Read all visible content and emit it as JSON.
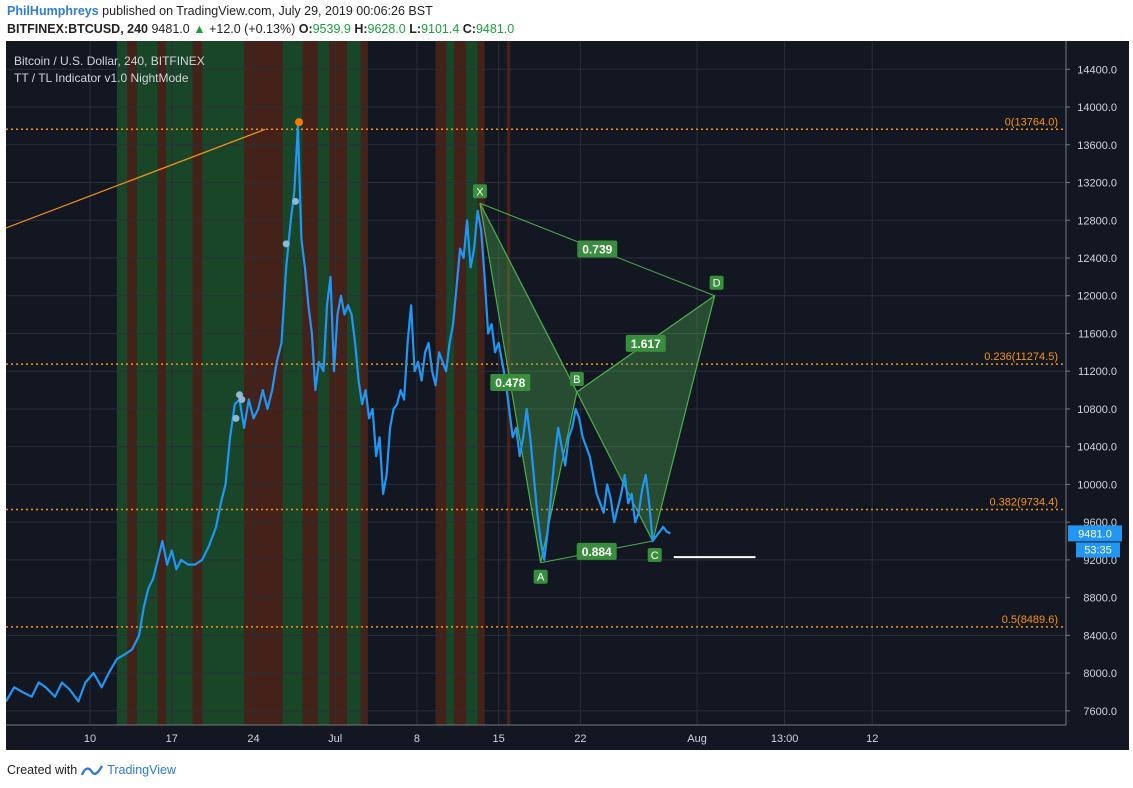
{
  "header": {
    "user": "PhilHumphreys",
    "published_text": "published on TradingView.com, July 29, 2019 00:06:26 BST",
    "symbol": "BITFINEX:BTCUSD, 240",
    "last": "9481.0",
    "change": "+12.0 (+0.13%)",
    "o_label": "O:",
    "o_val": "9539.9",
    "h_label": "H:",
    "h_val": "9628.0",
    "l_label": "L:",
    "l_val": "9101.4",
    "c_label": "C:",
    "c_val": "9481.0"
  },
  "legend": {
    "title": "Bitcoin / U.S. Dollar, 240, BITFINEX",
    "indicator": "TT / TL Indicator v1.0 NightMode"
  },
  "footer": {
    "created_with": "Created with",
    "brand": "TradingView"
  },
  "colors": {
    "background": "#131722",
    "price_line": "#2196f3",
    "fib_line": "#f7931a",
    "pattern_fill": "#4caf50",
    "label_green": "#388e3c",
    "band_green": "#1b4d2a",
    "band_red": "#4d2418",
    "current_price_tag": "#2196f3"
  },
  "price_tag": {
    "price": "9481.0",
    "countdown": "53:35"
  },
  "chart_data": {
    "type": "line",
    "title": "Bitcoin / U.S. Dollar, 240, BITFINEX",
    "ylim": [
      7450,
      14700
    ],
    "y_ticks": [
      7600,
      8000,
      8400,
      8800,
      9200,
      9600,
      10000,
      10400,
      10800,
      11200,
      11600,
      12000,
      12400,
      12800,
      13200,
      13600,
      14000,
      14400
    ],
    "y_tick_labels": [
      "7600.0",
      "8000.0",
      "8400.0",
      "8800.0",
      "9200.0",
      "9600.0",
      "10000.0",
      "10400.0",
      "10800.0",
      "11200.0",
      "11600.0",
      "12000.0",
      "12400.0",
      "12800.0",
      "13200.0",
      "13600.0",
      "14000.0",
      "14400.0"
    ],
    "x_tick_labels": [
      "10",
      "17",
      "24",
      "Jul",
      "8",
      "15",
      "22",
      "Aug",
      "13:00",
      "12"
    ],
    "x_tick_days": [
      10,
      17,
      24,
      31,
      38,
      45,
      52,
      62,
      69.5,
      77
    ],
    "x_range_days": [
      2.8,
      93.6
    ],
    "series": [
      {
        "values": [
          [
            2.8,
            7700
          ],
          [
            3.5,
            7850
          ],
          [
            4.2,
            7800
          ],
          [
            5.0,
            7750
          ],
          [
            5.6,
            7900
          ],
          [
            6.2,
            7850
          ],
          [
            7.0,
            7750
          ],
          [
            7.6,
            7900
          ],
          [
            8.3,
            7820
          ],
          [
            9.0,
            7700
          ],
          [
            9.6,
            7900
          ],
          [
            10.3,
            8000
          ],
          [
            11.0,
            7850
          ],
          [
            11.6,
            8000
          ],
          [
            12.3,
            8150
          ],
          [
            13.0,
            8200
          ],
          [
            13.6,
            8250
          ],
          [
            14.2,
            8400
          ],
          [
            14.6,
            8700
          ],
          [
            15.0,
            8900
          ],
          [
            15.4,
            9000
          ],
          [
            15.8,
            9200
          ],
          [
            16.2,
            9400
          ],
          [
            16.6,
            9150
          ],
          [
            17.0,
            9300
          ],
          [
            17.4,
            9100
          ],
          [
            17.8,
            9200
          ],
          [
            18.4,
            9150
          ],
          [
            19.0,
            9150
          ],
          [
            19.6,
            9200
          ],
          [
            20.2,
            9350
          ],
          [
            20.8,
            9550
          ],
          [
            21.2,
            9800
          ],
          [
            21.6,
            10000
          ],
          [
            22.0,
            10500
          ],
          [
            22.4,
            10850
          ],
          [
            22.8,
            10900
          ],
          [
            23.2,
            10600
          ],
          [
            23.6,
            10900
          ],
          [
            24.0,
            10700
          ],
          [
            24.4,
            10800
          ],
          [
            24.8,
            11000
          ],
          [
            25.2,
            10800
          ],
          [
            25.6,
            11000
          ],
          [
            26.0,
            11300
          ],
          [
            26.4,
            11500
          ],
          [
            26.8,
            12300
          ],
          [
            27.2,
            12800
          ],
          [
            27.5,
            13100
          ],
          [
            27.8,
            13800
          ],
          [
            28.1,
            12600
          ],
          [
            28.4,
            12300
          ],
          [
            28.7,
            11900
          ],
          [
            29.0,
            11600
          ],
          [
            29.3,
            11000
          ],
          [
            29.6,
            11300
          ],
          [
            30.0,
            11200
          ],
          [
            30.3,
            11900
          ],
          [
            30.6,
            12200
          ],
          [
            30.9,
            11200
          ],
          [
            31.2,
            11800
          ],
          [
            31.5,
            12000
          ],
          [
            31.8,
            11800
          ],
          [
            32.1,
            11900
          ],
          [
            32.4,
            11800
          ],
          [
            32.7,
            11500
          ],
          [
            33.0,
            11100
          ],
          [
            33.3,
            10850
          ],
          [
            33.6,
            11000
          ],
          [
            33.9,
            10700
          ],
          [
            34.2,
            10800
          ],
          [
            34.5,
            10300
          ],
          [
            34.8,
            10500
          ],
          [
            35.1,
            9900
          ],
          [
            35.4,
            10100
          ],
          [
            35.7,
            10600
          ],
          [
            36.0,
            10800
          ],
          [
            36.3,
            10850
          ],
          [
            36.6,
            11000
          ],
          [
            36.9,
            10900
          ],
          [
            37.2,
            11500
          ],
          [
            37.5,
            11900
          ],
          [
            37.8,
            11200
          ],
          [
            38.1,
            11300
          ],
          [
            38.4,
            11100
          ],
          [
            38.7,
            11400
          ],
          [
            39.0,
            11500
          ],
          [
            39.3,
            11200
          ],
          [
            39.6,
            11050
          ],
          [
            39.9,
            11400
          ],
          [
            40.2,
            11300
          ],
          [
            40.5,
            11200
          ],
          [
            40.8,
            11500
          ],
          [
            41.1,
            11700
          ],
          [
            41.4,
            12100
          ],
          [
            41.7,
            12500
          ],
          [
            42.0,
            12400
          ],
          [
            42.3,
            12800
          ],
          [
            42.6,
            12300
          ],
          [
            42.9,
            12500
          ],
          [
            43.2,
            12900
          ],
          [
            43.5,
            12700
          ],
          [
            43.8,
            12200
          ],
          [
            44.1,
            11600
          ],
          [
            44.4,
            11700
          ],
          [
            44.7,
            11400
          ],
          [
            45.0,
            11500
          ],
          [
            45.3,
            11300
          ],
          [
            45.6,
            11100
          ],
          [
            45.9,
            10800
          ],
          [
            46.2,
            10500
          ],
          [
            46.5,
            10600
          ],
          [
            46.8,
            10300
          ],
          [
            47.1,
            10500
          ],
          [
            47.4,
            10800
          ],
          [
            47.7,
            10500
          ],
          [
            48.0,
            10100
          ],
          [
            48.3,
            9700
          ],
          [
            48.6,
            9400
          ],
          [
            48.9,
            9200
          ],
          [
            49.2,
            9500
          ],
          [
            49.5,
            9900
          ],
          [
            49.8,
            10300
          ],
          [
            50.1,
            10600
          ],
          [
            50.4,
            10400
          ],
          [
            50.7,
            10200
          ],
          [
            51.0,
            10500
          ],
          [
            51.3,
            10600
          ],
          [
            51.6,
            10800
          ],
          [
            51.9,
            10700
          ],
          [
            52.2,
            10500
          ],
          [
            52.5,
            10400
          ],
          [
            52.8,
            10300
          ],
          [
            53.1,
            10100
          ],
          [
            53.4,
            9900
          ],
          [
            53.7,
            9800
          ],
          [
            54.0,
            9700
          ],
          [
            54.3,
            10000
          ],
          [
            54.6,
            9850
          ],
          [
            54.9,
            9600
          ],
          [
            55.2,
            9750
          ],
          [
            55.5,
            9900
          ],
          [
            55.8,
            10100
          ],
          [
            56.1,
            9800
          ],
          [
            56.4,
            9900
          ],
          [
            56.7,
            9600
          ],
          [
            57.0,
            9700
          ],
          [
            57.3,
            9950
          ],
          [
            57.6,
            10100
          ],
          [
            57.9,
            9800
          ],
          [
            58.2,
            9400
          ],
          [
            58.5,
            9450
          ],
          [
            58.8,
            9500
          ],
          [
            59.1,
            9550
          ],
          [
            59.4,
            9500
          ],
          [
            59.7,
            9481
          ]
        ]
      }
    ],
    "annotations": {
      "fib_levels": [
        {
          "label": "0(13764.0)",
          "value": 13764.0
        },
        {
          "label": "0.236(11274.5)",
          "value": 11274.5
        },
        {
          "label": "0.382(9734.4)",
          "value": 9734.4
        },
        {
          "label": "0.5(8489.6)",
          "value": 8489.6
        }
      ],
      "pattern_points": [
        {
          "label": "X",
          "day": 43.4,
          "value": 12980
        },
        {
          "label": "A",
          "day": 48.6,
          "value": 9170
        },
        {
          "label": "B",
          "day": 51.7,
          "value": 10980
        },
        {
          "label": "C",
          "day": 58.2,
          "value": 9400
        },
        {
          "label": "D",
          "day": 63.5,
          "value": 12000
        }
      ],
      "ratios": [
        "0.739",
        "0.478",
        "1.617",
        "0.884"
      ],
      "vertical_bands": "alternating green/red trend background"
    }
  }
}
